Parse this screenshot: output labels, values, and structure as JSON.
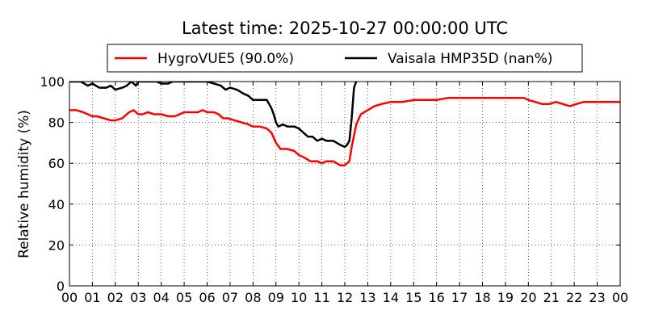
{
  "chart_data": {
    "type": "line",
    "title": "Latest time: 2025-10-27 00:00:00 UTC",
    "ylabel": "Relative humidity (%)",
    "xlabel": "",
    "xlim": [
      0,
      24
    ],
    "ylim": [
      0,
      100
    ],
    "grid": true,
    "legend_position": "top-center",
    "x_tick_labels": [
      "00",
      "01",
      "02",
      "03",
      "04",
      "05",
      "06",
      "07",
      "08",
      "09",
      "10",
      "11",
      "12",
      "13",
      "14",
      "15",
      "16",
      "17",
      "18",
      "19",
      "20",
      "21",
      "22",
      "23",
      "00"
    ],
    "y_tick_labels": [
      "0",
      "20",
      "40",
      "60",
      "80",
      "100"
    ],
    "series": [
      {
        "name": "HygroVUE5 (90.0%)",
        "color": "#ff0000",
        "x": [
          0,
          0.3,
          0.6,
          0.8,
          1.0,
          1.2,
          1.5,
          1.8,
          2.0,
          2.3,
          2.6,
          2.8,
          3.0,
          3.2,
          3.4,
          3.7,
          4.0,
          4.3,
          4.6,
          4.8,
          5.0,
          5.3,
          5.6,
          5.8,
          6.0,
          6.3,
          6.5,
          6.7,
          6.9,
          7.2,
          7.5,
          7.8,
          8.0,
          8.3,
          8.6,
          8.8,
          9.0,
          9.2,
          9.5,
          9.8,
          10.0,
          10.2,
          10.5,
          10.8,
          11.0,
          11.2,
          11.5,
          11.8,
          12.0,
          12.2,
          12.3,
          12.5,
          12.7,
          13.0,
          13.3,
          13.6,
          14.0,
          14.5,
          15.0,
          15.5,
          16.0,
          16.5,
          17.0,
          18.0,
          19.0,
          19.8,
          20.0,
          20.3,
          20.6,
          20.9,
          21.2,
          21.5,
          21.8,
          22.1,
          22.4,
          22.7,
          23.0,
          23.3,
          23.6,
          24.0
        ],
        "values": [
          86,
          86,
          85,
          84,
          83,
          83,
          82,
          81,
          81,
          82,
          85,
          86,
          84,
          84,
          85,
          84,
          84,
          83,
          83,
          84,
          85,
          85,
          85,
          86,
          85,
          85,
          84,
          82,
          82,
          81,
          80,
          79,
          78,
          78,
          77,
          75,
          70,
          67,
          67,
          66,
          64,
          63,
          61,
          61,
          60,
          61,
          61,
          59,
          59,
          61,
          68,
          79,
          84,
          86,
          88,
          89,
          90,
          90,
          91,
          91,
          91,
          92,
          92,
          92,
          92,
          92,
          91,
          90,
          89,
          89,
          90,
          89,
          88,
          89,
          90,
          90,
          90,
          90,
          90,
          90
        ]
      },
      {
        "name": "Vaisala HMP35D (nan%)",
        "color": "#000000",
        "x": [
          0,
          0.3,
          0.5,
          0.8,
          1.0,
          1.3,
          1.6,
          1.8,
          2.0,
          2.3,
          2.5,
          2.7,
          2.9,
          3.0,
          3.2,
          3.5,
          3.8,
          4.0,
          4.3,
          4.5,
          4.8,
          5.0,
          5.5,
          6.0,
          6.3,
          6.6,
          6.8,
          7.0,
          7.3,
          7.6,
          7.8,
          8.0,
          8.3,
          8.6,
          8.8,
          8.9,
          9.0,
          9.1,
          9.3,
          9.5,
          9.8,
          10.0,
          10.2,
          10.4,
          10.6,
          10.8,
          11.0,
          11.2,
          11.5,
          11.8,
          12.0,
          12.1,
          12.2,
          12.3,
          12.4,
          12.5
        ],
        "values": [
          100,
          100,
          100,
          98,
          99,
          97,
          97,
          98,
          96,
          97,
          98,
          100,
          98,
          100,
          100,
          100,
          100,
          99,
          99,
          100,
          100,
          100,
          100,
          100,
          99,
          98,
          96,
          97,
          96,
          94,
          93,
          91,
          91,
          91,
          87,
          84,
          80,
          78,
          79,
          78,
          78,
          77,
          75,
          73,
          73,
          71,
          72,
          71,
          71,
          69,
          68,
          69,
          71,
          82,
          97,
          100
        ]
      }
    ]
  }
}
